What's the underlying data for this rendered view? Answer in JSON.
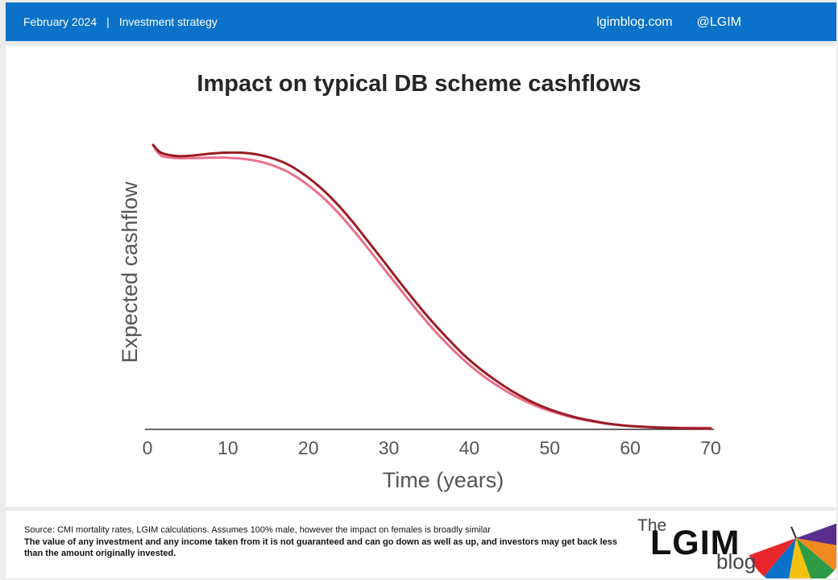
{
  "header": {
    "date": "February 2024",
    "separator": "|",
    "category": "Investment strategy",
    "site": "lgimblog.com",
    "handle": "@LGIM"
  },
  "chart_data": {
    "type": "line",
    "title": "Impact on typical DB scheme cashflows",
    "xlabel": "Time (years)",
    "ylabel": "Expected cashflow",
    "x_ticks": [
      "0",
      "10",
      "20",
      "30",
      "40",
      "50",
      "60",
      "70"
    ],
    "xlim": [
      0,
      70
    ],
    "ylim": [
      0,
      100
    ],
    "grid": false,
    "legend": "none",
    "series": [
      {
        "color": "#9b1c24",
        "x": [
          0,
          1,
          3,
          5,
          7,
          9,
          11,
          13,
          15,
          17,
          19,
          21,
          23,
          25,
          27,
          29,
          31,
          33,
          35,
          37,
          39,
          41,
          43,
          45,
          47,
          49,
          51,
          53,
          55,
          57,
          59,
          61,
          63,
          65,
          67,
          69,
          70
        ],
        "values": [
          100,
          97.3,
          96.1,
          96.3,
          96.9,
          97.3,
          97.3,
          96.7,
          95.3,
          93.0,
          89.5,
          85.0,
          79.5,
          73.1,
          66.0,
          58.8,
          51.5,
          44.5,
          37.8,
          31.7,
          26.0,
          21.2,
          17.0,
          13.3,
          10.2,
          7.6,
          5.6,
          4.0,
          2.8,
          1.8,
          1.1,
          0.7,
          0.4,
          0.2,
          0.05,
          0.0,
          0.0
        ]
      },
      {
        "color": "#e9708a",
        "x": [
          0,
          1,
          3,
          5,
          7,
          9,
          11,
          13,
          15,
          17,
          19,
          21,
          23,
          25,
          27,
          29,
          31,
          33,
          35,
          37,
          39,
          41,
          43,
          45,
          47,
          49,
          51,
          53,
          55,
          57,
          59,
          61,
          63,
          65,
          67,
          69,
          70
        ],
        "values": [
          100,
          96.3,
          95.4,
          95.4,
          95.5,
          95.5,
          95.2,
          94.4,
          92.8,
          90.4,
          86.8,
          82.3,
          76.8,
          70.4,
          63.5,
          56.3,
          49.2,
          42.2,
          35.6,
          29.6,
          24.2,
          19.5,
          15.5,
          12.1,
          9.3,
          7.0,
          5.2,
          3.7,
          2.6,
          1.7,
          1.1,
          0.7,
          0.45,
          0.3,
          0.25,
          0.25,
          0.25
        ]
      }
    ]
  },
  "footer": {
    "source": "Source: CMI mortality rates, LGIM  calculations. Assumes 100% male, however the impact on females is broadly similar",
    "disclaimer": "The value of any investment and any income taken from it is not guaranteed and can go down as well as up,  and investors may get back less than the amount originally  invested.",
    "logo_word": "LGIM",
    "logo_the": "The",
    "logo_blog": "blog",
    "logo_colors": [
      "#e8262b",
      "#0a72c8",
      "#f4c20d",
      "#2e9b46",
      "#f08a1e",
      "#5b2e8e"
    ]
  }
}
